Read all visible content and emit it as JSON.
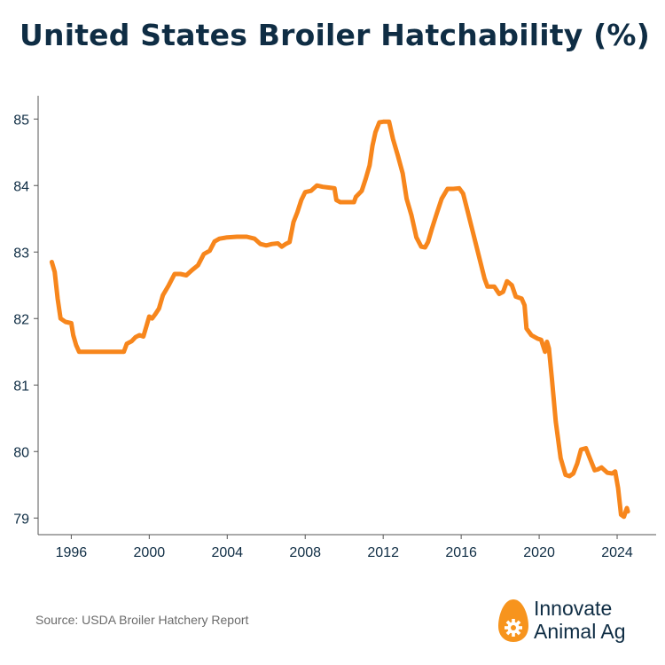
{
  "title": "United States Broiler Hatchability (%)",
  "source": "Source: USDA Broiler Hatchery Report",
  "brand": {
    "line1": "Innovate",
    "line2": "Animal Ag",
    "icon": "egg-gear-icon",
    "color": "#f7941d"
  },
  "colors": {
    "line": "#f7861c",
    "axis": "#555555",
    "text": "#0f2d44"
  },
  "chart_data": {
    "type": "line",
    "title": "United States Broiler Hatchability (%)",
    "xlabel": "",
    "ylabel": "",
    "xlim": [
      1994.3,
      2026.0
    ],
    "ylim": [
      78.75,
      85.35
    ],
    "grid": false,
    "xticks": [
      1996,
      2000,
      2004,
      2008,
      2012,
      2016,
      2020,
      2024
    ],
    "yticks": [
      79,
      80,
      81,
      82,
      83,
      84,
      85
    ],
    "series": [
      {
        "name": "",
        "points": [
          [
            1995.0,
            82.85
          ],
          [
            1995.15,
            82.7
          ],
          [
            1995.3,
            82.3
          ],
          [
            1995.45,
            82.0
          ],
          [
            1995.7,
            81.95
          ],
          [
            1996.0,
            81.93
          ],
          [
            1996.1,
            81.75
          ],
          [
            1996.25,
            81.6
          ],
          [
            1996.4,
            81.5
          ],
          [
            1997.0,
            81.5
          ],
          [
            1998.0,
            81.5
          ],
          [
            1998.7,
            81.5
          ],
          [
            1998.85,
            81.62
          ],
          [
            1999.1,
            81.66
          ],
          [
            1999.3,
            81.72
          ],
          [
            1999.5,
            81.75
          ],
          [
            1999.7,
            81.73
          ],
          [
            1999.85,
            81.88
          ],
          [
            2000.0,
            82.03
          ],
          [
            2000.15,
            82.0
          ],
          [
            2000.3,
            82.06
          ],
          [
            2000.5,
            82.15
          ],
          [
            2000.7,
            82.35
          ],
          [
            2001.0,
            82.5
          ],
          [
            2001.3,
            82.67
          ],
          [
            2001.6,
            82.67
          ],
          [
            2001.9,
            82.65
          ],
          [
            2002.2,
            82.73
          ],
          [
            2002.5,
            82.8
          ],
          [
            2002.8,
            82.97
          ],
          [
            2003.1,
            83.02
          ],
          [
            2003.35,
            83.16
          ],
          [
            2003.6,
            83.2
          ],
          [
            2004.0,
            83.22
          ],
          [
            2004.5,
            83.23
          ],
          [
            2005.0,
            83.23
          ],
          [
            2005.4,
            83.2
          ],
          [
            2005.7,
            83.12
          ],
          [
            2006.0,
            83.1
          ],
          [
            2006.3,
            83.12
          ],
          [
            2006.6,
            83.13
          ],
          [
            2006.8,
            83.08
          ],
          [
            2007.0,
            83.12
          ],
          [
            2007.2,
            83.15
          ],
          [
            2007.4,
            83.45
          ],
          [
            2007.6,
            83.6
          ],
          [
            2007.8,
            83.78
          ],
          [
            2008.0,
            83.9
          ],
          [
            2008.3,
            83.92
          ],
          [
            2008.6,
            84.0
          ],
          [
            2008.9,
            83.98
          ],
          [
            2009.2,
            83.97
          ],
          [
            2009.5,
            83.96
          ],
          [
            2009.6,
            83.78
          ],
          [
            2009.8,
            83.75
          ],
          [
            2010.2,
            83.75
          ],
          [
            2010.5,
            83.75
          ],
          [
            2010.6,
            83.83
          ],
          [
            2010.9,
            83.92
          ],
          [
            2011.1,
            84.1
          ],
          [
            2011.3,
            84.3
          ],
          [
            2011.45,
            84.6
          ],
          [
            2011.6,
            84.8
          ],
          [
            2011.8,
            84.95
          ],
          [
            2012.0,
            84.96
          ],
          [
            2012.3,
            84.96
          ],
          [
            2012.5,
            84.7
          ],
          [
            2012.75,
            84.45
          ],
          [
            2013.0,
            84.18
          ],
          [
            2013.2,
            83.8
          ],
          [
            2013.45,
            83.55
          ],
          [
            2013.7,
            83.22
          ],
          [
            2013.95,
            83.08
          ],
          [
            2014.15,
            83.07
          ],
          [
            2014.3,
            83.15
          ],
          [
            2014.5,
            83.35
          ],
          [
            2014.75,
            83.58
          ],
          [
            2015.0,
            83.8
          ],
          [
            2015.3,
            83.95
          ],
          [
            2015.6,
            83.95
          ],
          [
            2015.9,
            83.96
          ],
          [
            2016.1,
            83.88
          ],
          [
            2016.3,
            83.65
          ],
          [
            2016.6,
            83.3
          ],
          [
            2016.9,
            82.95
          ],
          [
            2017.2,
            82.6
          ],
          [
            2017.35,
            82.48
          ],
          [
            2017.7,
            82.48
          ],
          [
            2017.95,
            82.37
          ],
          [
            2018.15,
            82.4
          ],
          [
            2018.35,
            82.56
          ],
          [
            2018.6,
            82.5
          ],
          [
            2018.8,
            82.33
          ],
          [
            2019.1,
            82.3
          ],
          [
            2019.25,
            82.2
          ],
          [
            2019.35,
            81.85
          ],
          [
            2019.6,
            81.75
          ],
          [
            2019.9,
            81.7
          ],
          [
            2020.1,
            81.68
          ],
          [
            2020.3,
            81.5
          ],
          [
            2020.4,
            81.65
          ],
          [
            2020.5,
            81.55
          ],
          [
            2020.65,
            81.1
          ],
          [
            2020.85,
            80.45
          ],
          [
            2021.1,
            79.9
          ],
          [
            2021.35,
            79.65
          ],
          [
            2021.55,
            79.63
          ],
          [
            2021.75,
            79.67
          ],
          [
            2021.95,
            79.82
          ],
          [
            2022.15,
            80.03
          ],
          [
            2022.4,
            80.05
          ],
          [
            2022.6,
            79.9
          ],
          [
            2022.85,
            79.72
          ],
          [
            2023.0,
            79.73
          ],
          [
            2023.2,
            79.76
          ],
          [
            2023.5,
            79.68
          ],
          [
            2023.75,
            79.67
          ],
          [
            2023.9,
            79.7
          ],
          [
            2024.05,
            79.45
          ],
          [
            2024.2,
            79.05
          ],
          [
            2024.35,
            79.02
          ],
          [
            2024.5,
            79.15
          ],
          [
            2024.55,
            79.1
          ]
        ]
      }
    ]
  }
}
